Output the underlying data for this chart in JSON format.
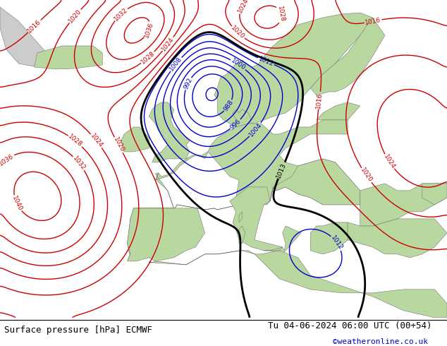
{
  "title_left": "Surface pressure [hPa] ECMWF",
  "title_right": "Tu 04-06-2024 06:00 UTC (00+54)",
  "watermark": "©weatheronline.co.uk",
  "bg_ocean": "#d8d8d8",
  "bg_land_green": "#b8d8a0",
  "bg_land_gray": "#a8a8a8",
  "contour_blue": "#0000cc",
  "contour_red": "#cc0000",
  "contour_black": "#000000",
  "font_size_label": 7,
  "font_size_title": 9,
  "font_size_watermark": 8,
  "figsize": [
    6.34,
    4.9
  ],
  "dpi": 100,
  "lon_min": -30,
  "lon_max": 42,
  "lat_min": 28,
  "lat_max": 73
}
